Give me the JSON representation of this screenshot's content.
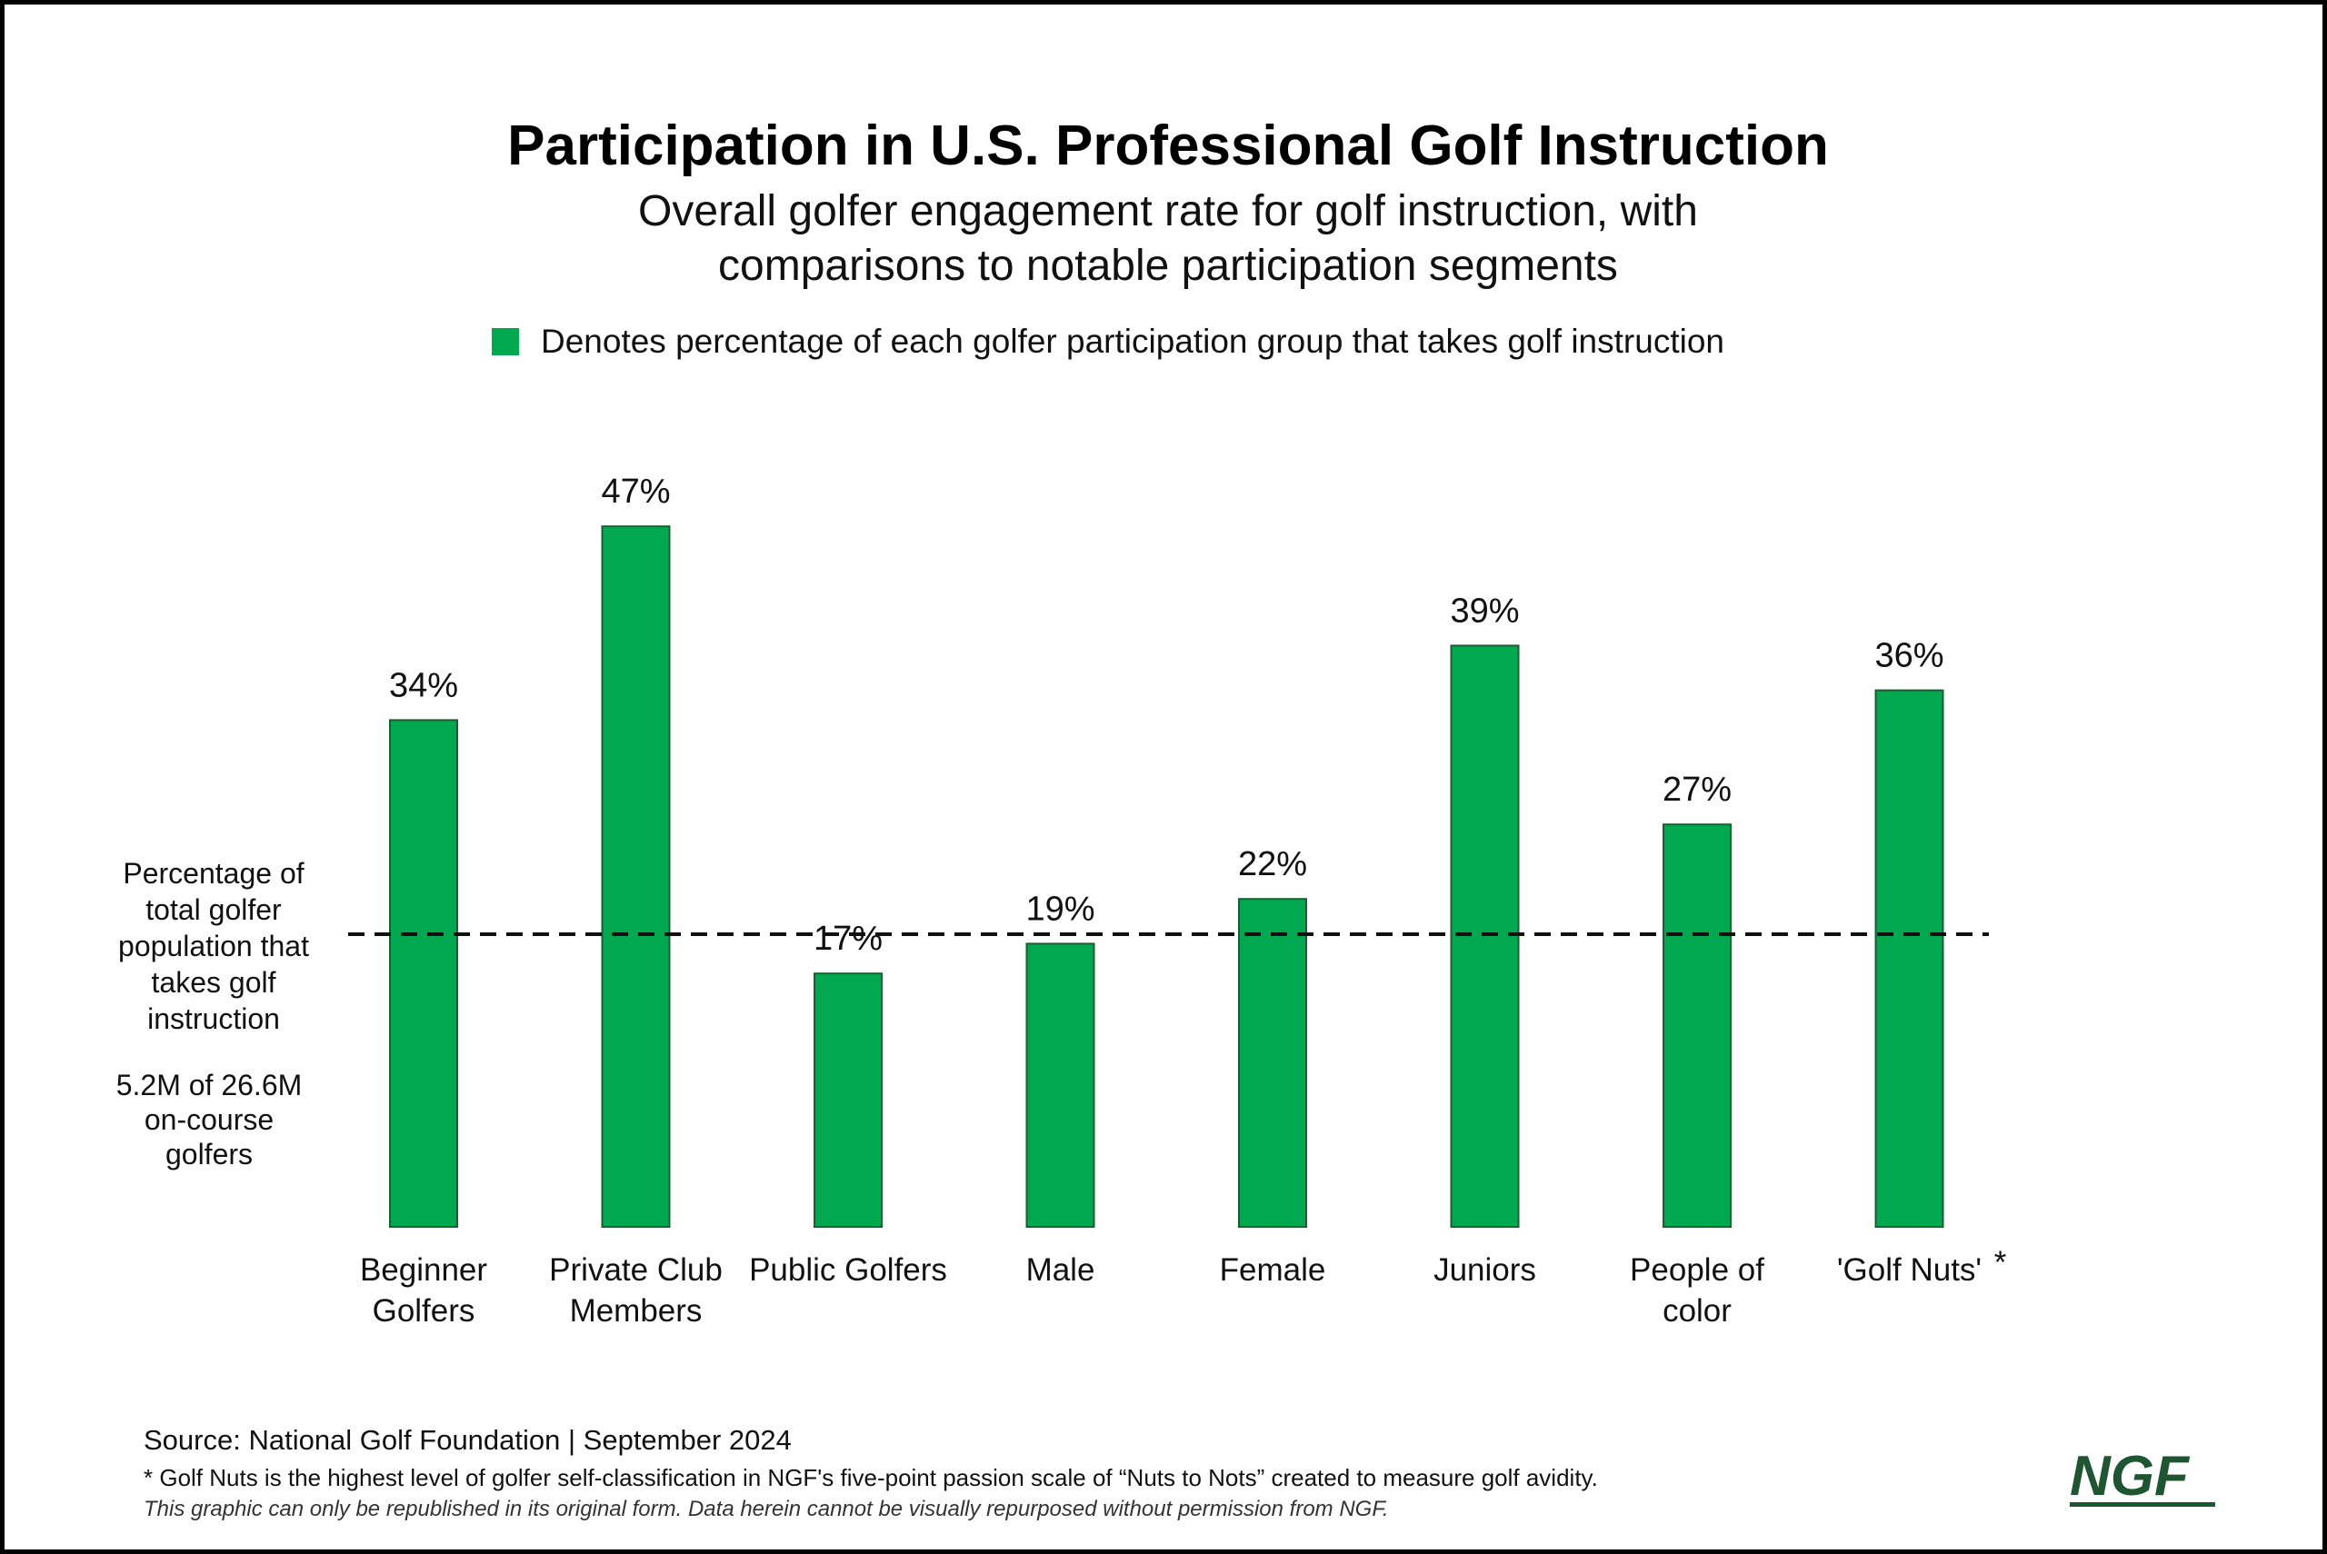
{
  "colors": {
    "bar": "#00A94F",
    "bar_stroke": "#1e5c33",
    "reference_line": "#111111",
    "logo": "#1f5631"
  },
  "header": {
    "title": "Participation in U.S. Professional Golf Instruction",
    "subtitle_line1": "Overall golfer engagement rate for golf instruction, with",
    "subtitle_line2": "comparisons to notable participation segments"
  },
  "legend": {
    "label": "Denotes percentage of each golfer participation group that takes golf instruction"
  },
  "reference": {
    "note_lines": [
      "Percentage of",
      "total golfer",
      "population that",
      "takes golf",
      "instruction"
    ],
    "stat_lines": [
      "5.2M of 26.6M",
      "on-course",
      "golfers"
    ]
  },
  "chart_data": {
    "type": "bar",
    "categories": [
      [
        "Beginner",
        "Golfers"
      ],
      [
        "Private Club",
        "Members"
      ],
      [
        "Public Golfers"
      ],
      [
        "Male"
      ],
      [
        "Female"
      ],
      [
        "Juniors"
      ],
      [
        "People of",
        "color"
      ],
      [
        "'Golf Nuts'"
      ]
    ],
    "values": [
      34,
      47,
      17,
      19,
      22,
      39,
      27,
      36
    ],
    "data_labels": [
      "34%",
      "47%",
      "17%",
      "19%",
      "22%",
      "39%",
      "27%",
      "36%"
    ],
    "category_asterisk": [
      false,
      false,
      false,
      false,
      false,
      false,
      false,
      true
    ],
    "asterisk": "*",
    "reference_value": 20,
    "ylim": [
      0,
      60
    ]
  },
  "footer": {
    "source": "Source: National Golf Foundation | September 2024",
    "footnote": "* Golf Nuts is the highest level of golfer self-classification in NGF's five-point passion scale of “Nuts to Nots” created to measure golf avidity.",
    "disclaimer": "This graphic can only be republished in its original form. Data herein cannot be visually repurposed without permission from NGF.",
    "logo_text": "NGF"
  }
}
